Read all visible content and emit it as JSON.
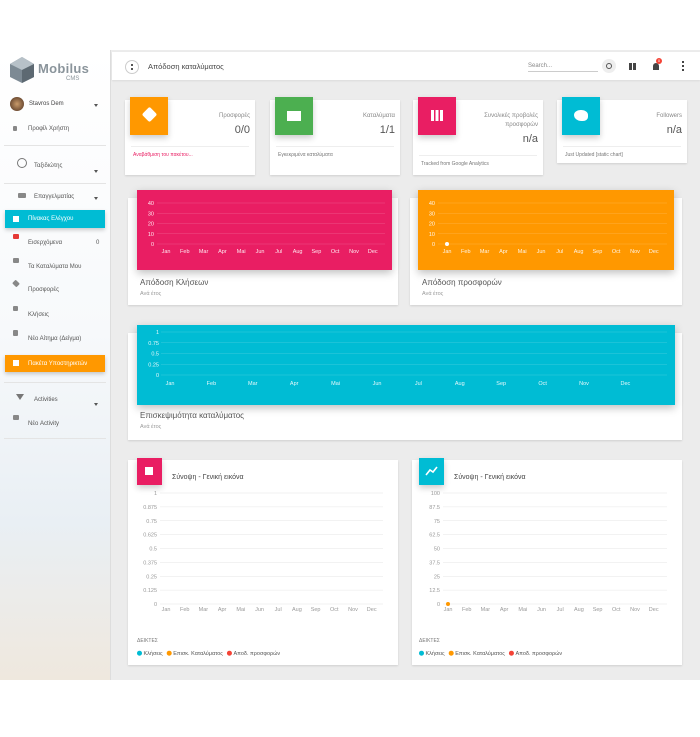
{
  "topbar": {
    "title": "Απόδοση καταλύματος",
    "search_placeholder": "Search...",
    "notification_count": "0"
  },
  "sidebar": {
    "logo": "Mobilus",
    "logo_sub": "CMS",
    "user": "Stavros Dem",
    "items": [
      {
        "label": "Προφίλ Χρήστη"
      },
      {
        "label": "Ταξιδιώτης"
      },
      {
        "label": "Επαγγελματίας"
      },
      {
        "label": "Πίνακας Ελέγχου"
      },
      {
        "label": "Εισερχόμενα",
        "badge": "0"
      },
      {
        "label": "Τα Καταλύματα Μου"
      },
      {
        "label": "Προσφορές"
      },
      {
        "label": "Κλήσεις"
      },
      {
        "label": "Νέο Αίτημα (Δείγμα)"
      },
      {
        "label": "Πακέτα Υποστηρικτών"
      },
      {
        "label": "Activities"
      },
      {
        "label": "Νέο Activity"
      }
    ]
  },
  "stat_cards": [
    {
      "label": "Προσφορές",
      "value": "0/0",
      "footer": "Αναβάθμιση του πακέτου...",
      "color": "#ff9800"
    },
    {
      "label": "Καταλύματα",
      "value": "1/1",
      "footer": "Εγκεκριμένα καταλύματα",
      "color": "#4caf50"
    },
    {
      "label": "Συνολικές προβολές προσφορών",
      "value": "n/a",
      "footer": "Tracked from Google Analytics",
      "color": "#e91e63"
    },
    {
      "label": "Followers",
      "value": "n/a",
      "footer": "Just Updated [static chart]",
      "color": "#00bcd4"
    }
  ],
  "chart_data": [
    {
      "type": "line",
      "title": "Απόδοση Κλήσεων",
      "subtitle": "Ανά έτος",
      "categories": [
        "Jan",
        "Feb",
        "Mar",
        "Apr",
        "Mai",
        "Jun",
        "Jul",
        "Aug",
        "Sep",
        "Oct",
        "Nov",
        "Dec"
      ],
      "values": [
        null,
        null,
        null,
        null,
        null,
        null,
        null,
        null,
        null,
        null,
        null,
        null
      ],
      "color": "#ffffff",
      "background": "#e91e63",
      "ylim": [
        0,
        40
      ],
      "yticks": [
        0,
        10,
        20,
        30,
        40
      ],
      "grid": true
    },
    {
      "type": "line",
      "title": "Απόδοση προσφορών",
      "subtitle": "Ανά έτος",
      "categories": [
        "Jan",
        "Feb",
        "Mar",
        "Apr",
        "Mai",
        "Jun",
        "Jul",
        "Aug",
        "Sep",
        "Oct",
        "Nov",
        "Dec"
      ],
      "values": [
        0,
        null,
        null,
        null,
        null,
        null,
        null,
        null,
        null,
        null,
        null,
        null
      ],
      "color": "#ffffff",
      "background": "#ff9800",
      "ylim": [
        0,
        40
      ],
      "yticks": [
        0,
        10,
        20,
        30,
        40
      ],
      "grid": true
    },
    {
      "type": "line",
      "title": "Επισκεψιμότητα καταλύματος",
      "subtitle": "Ανά έτος",
      "categories": [
        "Jan",
        "Feb",
        "Mar",
        "Apr",
        "Mai",
        "Jun",
        "Jul",
        "Aug",
        "Sep",
        "Oct",
        "Nov",
        "Dec"
      ],
      "values": [
        null,
        null,
        null,
        null,
        null,
        null,
        null,
        null,
        null,
        null,
        null,
        null
      ],
      "color": "#ffffff",
      "background": "#00bcd4",
      "ylim": [
        0,
        1
      ],
      "yticks": [
        0,
        0.25,
        0.5,
        0.75,
        1
      ],
      "grid": true
    },
    {
      "type": "line",
      "title": "Σύνοψη - Γενική εικόνα",
      "legend_title": "ΔΕΙΚΤΕΣ",
      "icon_color": "#e91e63",
      "categories": [
        "Jan",
        "Feb",
        "Mar",
        "Apr",
        "Mai",
        "Jun",
        "Jul",
        "Aug",
        "Sep",
        "Oct",
        "Nov",
        "Dec"
      ],
      "series": [
        {
          "name": "Κλήσεις",
          "color": "#00bcd4",
          "values": [
            null,
            null,
            null,
            null,
            null,
            null,
            null,
            null,
            null,
            null,
            null,
            null
          ]
        },
        {
          "name": "Επισκ. Καταλύματος",
          "color": "#ff9800",
          "values": [
            null,
            null,
            null,
            null,
            null,
            null,
            null,
            null,
            null,
            null,
            null,
            null
          ]
        },
        {
          "name": "Αποδ. προσφορών",
          "color": "#f44336",
          "values": [
            null,
            null,
            null,
            null,
            null,
            null,
            null,
            null,
            null,
            null,
            null,
            null
          ]
        }
      ],
      "ylim": [
        0,
        1
      ],
      "yticks": [
        0,
        0.125,
        0.25,
        0.375,
        0.5,
        0.625,
        0.75,
        0.875,
        1
      ],
      "grid": true
    },
    {
      "type": "line",
      "title": "Σύνοψη - Γενική εικόνα",
      "legend_title": "ΔΕΙΚΤΕΣ",
      "icon_color": "#00bcd4",
      "categories": [
        "Jan",
        "Feb",
        "Mar",
        "Apr",
        "Mai",
        "Jun",
        "Jul",
        "Aug",
        "Sep",
        "Oct",
        "Nov",
        "Dec"
      ],
      "series": [
        {
          "name": "Κλήσεις",
          "color": "#00bcd4",
          "values": [
            null,
            null,
            null,
            null,
            null,
            null,
            null,
            null,
            null,
            null,
            null,
            null
          ]
        },
        {
          "name": "Επισκ. Καταλύματος",
          "color": "#ff9800",
          "values": [
            0,
            null,
            null,
            null,
            null,
            null,
            null,
            null,
            null,
            null,
            null,
            null
          ]
        },
        {
          "name": "Αποδ. προσφορών",
          "color": "#f44336",
          "values": [
            null,
            null,
            null,
            null,
            null,
            null,
            null,
            null,
            null,
            null,
            null,
            null
          ]
        }
      ],
      "ylim": [
        0,
        100
      ],
      "yticks": [
        0,
        12.5,
        25,
        37.5,
        50,
        62.5,
        75,
        87.5,
        100
      ],
      "grid": true
    }
  ]
}
